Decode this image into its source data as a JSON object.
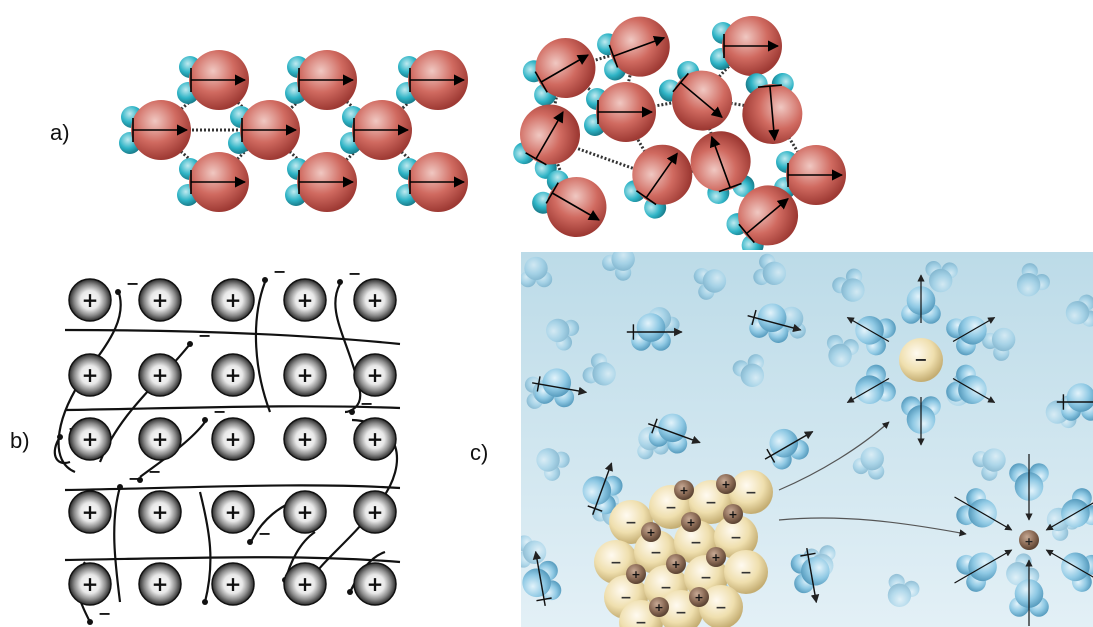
{
  "labels": {
    "a": "a)",
    "b": "b)",
    "c": "c)"
  },
  "symbols": {
    "plus": "+",
    "minus": "−"
  },
  "colors": {
    "water_red": "#c9504a",
    "water_cyan": "#2ab3c6",
    "cation_center": "#f2f2f2",
    "cation_ring": "#2a2a2a",
    "electron_curve": "#111111",
    "solution_bg": "#cfe6f0",
    "water_blue": "#8ec8e3",
    "anion_tan": "#f1e3b0",
    "cation_brown": "#8a6a55"
  },
  "icons": {
    "water": "water-molecule-icon",
    "cation": "positive-ion-icon",
    "anion": "negative-ion-icon",
    "electron": "electron-dot-icon"
  }
}
